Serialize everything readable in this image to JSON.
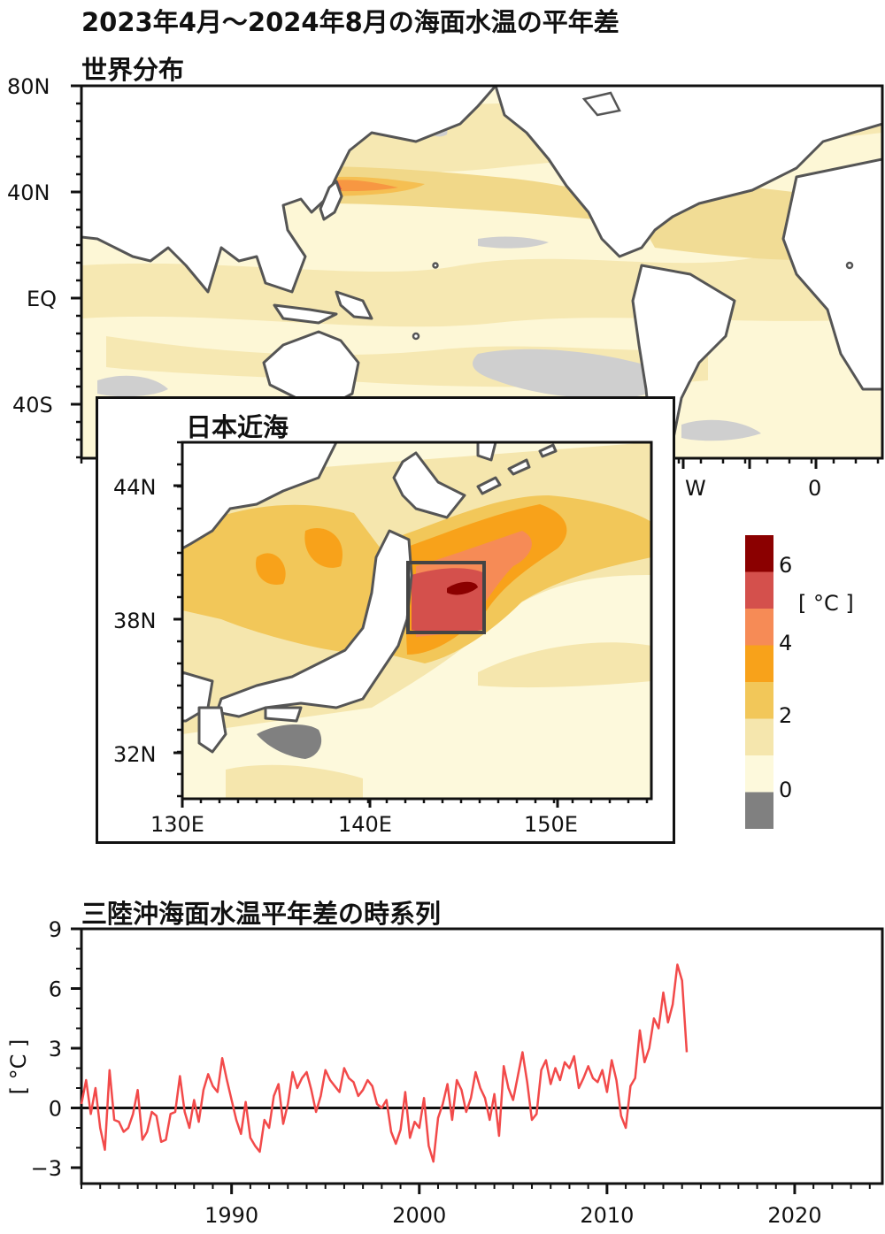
{
  "header": {
    "title": "2023年4月～2024年8月の海面水温の平年差",
    "world_label": "世界分布",
    "inset_label": "日本近海",
    "timeseries_label": "三陸沖海面水温平年差の時系列"
  },
  "world_map": {
    "lat_ticks": [
      "80N",
      "40N",
      "EQ",
      "40S"
    ],
    "lon_ticks_visible": [
      "W",
      "0"
    ]
  },
  "inset_map": {
    "lat_ticks": [
      "44N",
      "38N",
      "32N"
    ],
    "lon_ticks": [
      "130E",
      "140E",
      "150E"
    ]
  },
  "colorbar": {
    "unit": "[ °C ]",
    "labels": [
      "6",
      "4",
      "2",
      "0"
    ],
    "colors": [
      "#8b0000",
      "#d4504c",
      "#f68b56",
      "#f8a21a",
      "#f2c759",
      "#f5e6ad",
      "#fdf9dc",
      "#808080"
    ]
  },
  "chart_data": {
    "type": "line",
    "title": "三陸沖海面水温平年差の時系列",
    "ylabel": "[ °C ]",
    "xlabel": "",
    "x_range": [
      1982,
      2024.67
    ],
    "ylim": [
      -3.8,
      9
    ],
    "yticks": [
      9,
      6,
      3,
      0,
      -3
    ],
    "xticks": [
      1990,
      2000,
      2010,
      2020
    ],
    "zero_line": true,
    "color": "#f24a4a",
    "series": [
      {
        "x_start": 1982,
        "x_step": 0.25,
        "values": [
          0.2,
          1.4,
          -0.3,
          1.0,
          -1.0,
          -2.1,
          1.9,
          -0.6,
          -0.7,
          -1.2,
          -1.0,
          -0.3,
          0.9,
          -1.6,
          -1.2,
          -0.2,
          -0.4,
          -1.7,
          -1.6,
          -0.3,
          -0.2,
          1.6,
          -0.2,
          -1.0,
          0.4,
          -0.7,
          0.9,
          1.7,
          1.1,
          0.8,
          2.5,
          1.4,
          0.4,
          -0.6,
          -1.3,
          0.3,
          -1.5,
          -1.9,
          -2.2,
          -0.6,
          -1.0,
          0.6,
          1.2,
          -0.8,
          0.2,
          1.8,
          1.0,
          1.5,
          1.8,
          0.9,
          -0.2,
          0.6,
          1.9,
          1.4,
          1.1,
          0.8,
          2.0,
          1.5,
          1.3,
          0.6,
          0.9,
          1.4,
          1.1,
          0.2,
          0.0,
          0.4,
          -1.2,
          -1.8,
          -1.1,
          0.8,
          -1.5,
          -0.7,
          -1.0,
          0.5,
          -1.9,
          -2.7,
          -0.5,
          0.2,
          1.2,
          -0.6,
          1.4,
          0.9,
          -0.2,
          0.5,
          1.8,
          1.0,
          0.5,
          -0.6,
          0.7,
          -1.4,
          2.1,
          1.0,
          0.4,
          1.6,
          2.8,
          1.3,
          -0.6,
          -0.3,
          1.9,
          2.4,
          1.2,
          2.0,
          1.4,
          2.3,
          2.0,
          2.6,
          1.0,
          1.5,
          2.1,
          1.5,
          1.3,
          1.9,
          0.8,
          2.4,
          1.4,
          -0.4,
          -1.0,
          1.1,
          1.5,
          3.9,
          2.3,
          3.0,
          4.5,
          4.0,
          5.8,
          4.3,
          5.2,
          7.2,
          6.4,
          2.8
        ]
      }
    ]
  }
}
